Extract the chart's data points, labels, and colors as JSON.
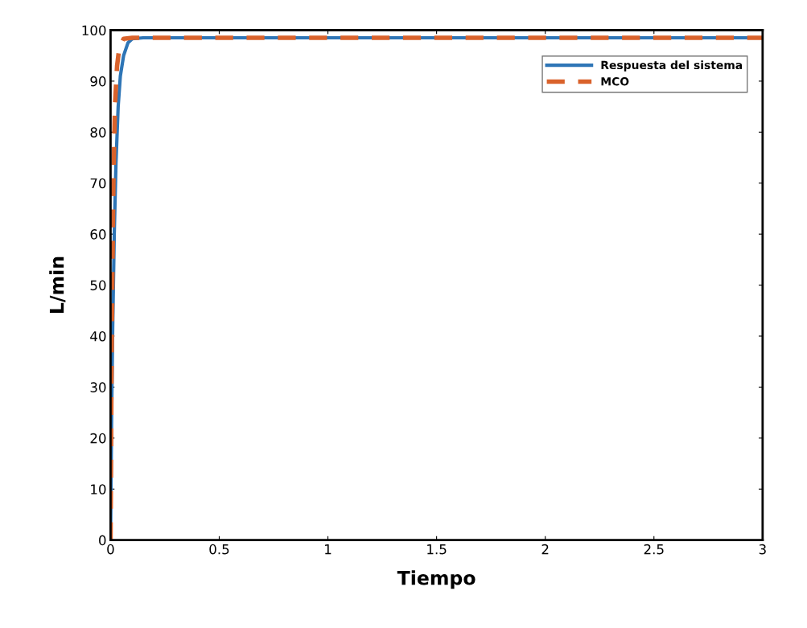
{
  "chart_data": {
    "type": "line",
    "xlabel": "Tiempo",
    "ylabel": "L/min",
    "xlim": [
      0,
      3
    ],
    "ylim": [
      0,
      100
    ],
    "xticks": [
      0,
      0.5,
      1,
      1.5,
      2,
      2.5,
      3
    ],
    "yticks": [
      0,
      10,
      20,
      30,
      40,
      50,
      60,
      70,
      80,
      90,
      100
    ],
    "grid": false,
    "legend": "top right",
    "series": [
      {
        "name": "Respuesta del sistema",
        "color": "#2e75b6",
        "line_style": "solid",
        "x": [
          0,
          0.005,
          0.01,
          0.017,
          0.025,
          0.035,
          0.045,
          0.06,
          0.08,
          0.1,
          0.15,
          3
        ],
        "values": [
          0,
          25,
          42,
          60,
          74,
          85,
          91,
          95,
          97.5,
          98.3,
          98.5,
          98.5
        ]
      },
      {
        "name": "MCO",
        "color": "#d9622b",
        "line_style": "dashed",
        "x": [
          0,
          0.004,
          0.008,
          0.013,
          0.02,
          0.03,
          0.04,
          0.06,
          0.1,
          3
        ],
        "values": [
          0,
          30,
          50,
          70,
          85,
          93,
          96.5,
          98.3,
          98.5,
          98.5
        ]
      }
    ]
  }
}
